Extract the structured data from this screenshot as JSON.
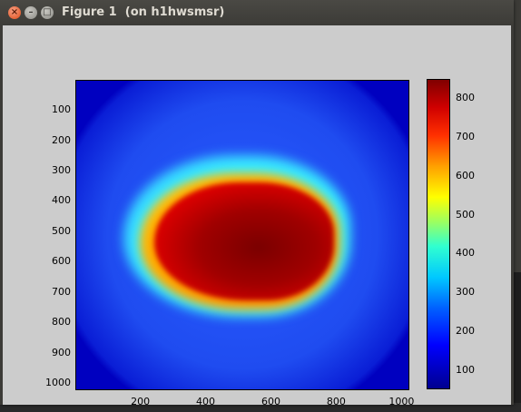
{
  "window": {
    "title": "Figure 1  (on h1hwsmsr)",
    "close_glyph": "×",
    "minimize_glyph": "–",
    "maximize_glyph": "□"
  },
  "chart_data": {
    "type": "heatmap",
    "x_ticks": [
      "200",
      "400",
      "600",
      "800",
      "1000"
    ],
    "y_ticks": [
      "100",
      "200",
      "300",
      "400",
      "500",
      "600",
      "700",
      "800",
      "900",
      "1000"
    ],
    "xlim": [
      1,
      1024
    ],
    "ylim": [
      1,
      1024
    ],
    "colorbar_ticks": [
      "100",
      "200",
      "300",
      "400",
      "500",
      "600",
      "700",
      "800"
    ],
    "colorbar_range": [
      50,
      850
    ],
    "colormap": "jet"
  },
  "colors": {
    "figure_bg": "#cccccc",
    "titlebar": "#3c3b37"
  }
}
